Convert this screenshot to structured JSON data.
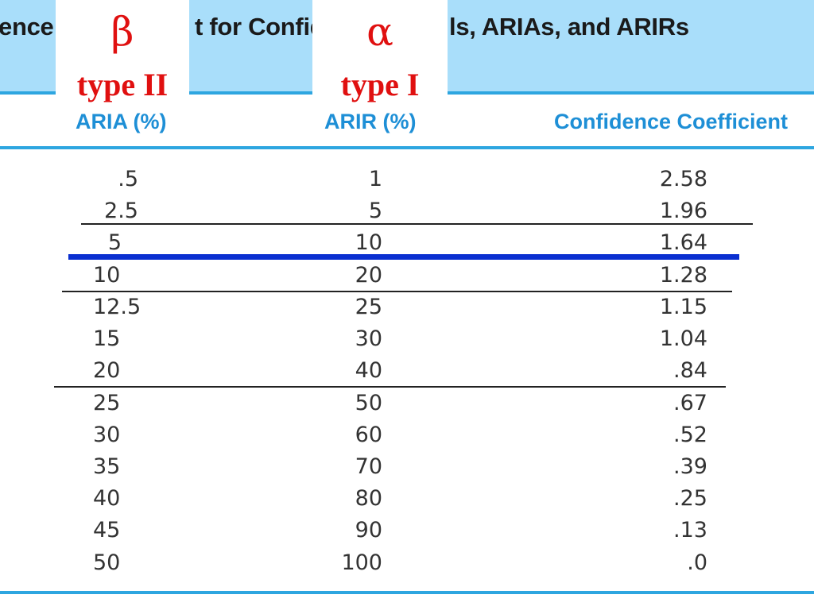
{
  "title": {
    "part_a": "ence",
    "part_b": "t for Confid",
    "part_c": "ls, ARIAs, and ARIRs"
  },
  "overlays": {
    "beta": {
      "symbol": "β",
      "label": "type II"
    },
    "alpha": {
      "symbol": "α",
      "label": "type I"
    }
  },
  "columns": {
    "aria": "ARIA (%)",
    "arir": "ARIR (%)",
    "confidence": "Confidence Coefficient"
  },
  "rows": [
    {
      "aria": ".5",
      "arir": "1",
      "conf": "2.58"
    },
    {
      "aria": "2.5",
      "arir": "5",
      "conf": "1.96"
    },
    {
      "aria": "5",
      "arir": "10",
      "conf": "1.64"
    },
    {
      "aria": "10",
      "arir": "20",
      "conf": "1.28"
    },
    {
      "aria": "12.5",
      "arir": "25",
      "conf": "1.15"
    },
    {
      "aria": "15",
      "arir": "30",
      "conf": "1.04"
    },
    {
      "aria": "20",
      "arir": "40",
      "conf": ".84"
    },
    {
      "aria": "25",
      "arir": "50",
      "conf": ".67"
    },
    {
      "aria": "30",
      "arir": "60",
      "conf": ".52"
    },
    {
      "aria": "35",
      "arir": "70",
      "conf": ".39"
    },
    {
      "aria": "40",
      "arir": "80",
      "conf": ".25"
    },
    {
      "aria": "45",
      "arir": "90",
      "conf": ".13"
    },
    {
      "aria": "50",
      "arir": "100",
      "conf": ".0"
    }
  ],
  "colors": {
    "header_band": "#a9defa",
    "rule": "#2ea6e0",
    "column_heading": "#1e8fd6",
    "annotation_text": "#e01010",
    "highlight_bar": "#0a2fd0"
  }
}
